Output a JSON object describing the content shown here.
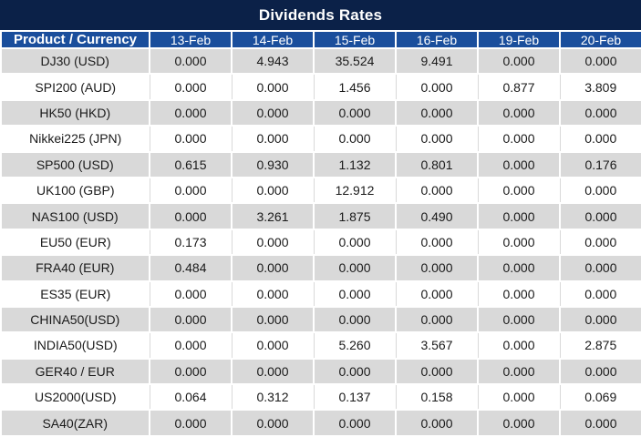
{
  "title": "Dividends Rates",
  "colors": {
    "title_bar_bg": "#0B2148",
    "header_bg": "#1A4E9C",
    "row_alt_bg": "#D9D9D9",
    "value_zero_text": "#1A1A1A",
    "value_nonzero_text": "#F50D0D",
    "header_text": "#FFFFFF"
  },
  "chart_data": {
    "type": "table",
    "title": "Dividends Rates",
    "zero_display": "0.000",
    "columns": [
      "Product / Currency",
      "13-Feb",
      "14-Feb",
      "15-Feb",
      "16-Feb",
      "19-Feb",
      "20-Feb"
    ],
    "rows": [
      {
        "product": "DJ30 (USD)",
        "values": [
          "0.000",
          "4.943",
          "35.524",
          "9.491",
          "0.000",
          "0.000"
        ]
      },
      {
        "product": "SPI200 (AUD)",
        "values": [
          "0.000",
          "0.000",
          "1.456",
          "0.000",
          "0.877",
          "3.809"
        ]
      },
      {
        "product": "HK50 (HKD)",
        "values": [
          "0.000",
          "0.000",
          "0.000",
          "0.000",
          "0.000",
          "0.000"
        ]
      },
      {
        "product": "Nikkei225 (JPN)",
        "values": [
          "0.000",
          "0.000",
          "0.000",
          "0.000",
          "0.000",
          "0.000"
        ]
      },
      {
        "product": "SP500 (USD)",
        "values": [
          "0.615",
          "0.930",
          "1.132",
          "0.801",
          "0.000",
          "0.176"
        ]
      },
      {
        "product": "UK100 (GBP)",
        "values": [
          "0.000",
          "0.000",
          "12.912",
          "0.000",
          "0.000",
          "0.000"
        ]
      },
      {
        "product": "NAS100 (USD)",
        "values": [
          "0.000",
          "3.261",
          "1.875",
          "0.490",
          "0.000",
          "0.000"
        ]
      },
      {
        "product": "EU50 (EUR)",
        "values": [
          "0.173",
          "0.000",
          "0.000",
          "0.000",
          "0.000",
          "0.000"
        ]
      },
      {
        "product": "FRA40 (EUR)",
        "values": [
          "0.484",
          "0.000",
          "0.000",
          "0.000",
          "0.000",
          "0.000"
        ]
      },
      {
        "product": "ES35 (EUR)",
        "values": [
          "0.000",
          "0.000",
          "0.000",
          "0.000",
          "0.000",
          "0.000"
        ]
      },
      {
        "product": "CHINA50(USD)",
        "values": [
          "0.000",
          "0.000",
          "0.000",
          "0.000",
          "0.000",
          "0.000"
        ]
      },
      {
        "product": "INDIA50(USD)",
        "values": [
          "0.000",
          "0.000",
          "5.260",
          "3.567",
          "0.000",
          "2.875"
        ]
      },
      {
        "product": "GER40 / EUR",
        "values": [
          "0.000",
          "0.000",
          "0.000",
          "0.000",
          "0.000",
          "0.000"
        ]
      },
      {
        "product": "US2000(USD)",
        "values": [
          "0.064",
          "0.312",
          "0.137",
          "0.158",
          "0.000",
          "0.069"
        ]
      },
      {
        "product": "SA40(ZAR)",
        "values": [
          "0.000",
          "0.000",
          "0.000",
          "0.000",
          "0.000",
          "0.000"
        ]
      }
    ]
  }
}
